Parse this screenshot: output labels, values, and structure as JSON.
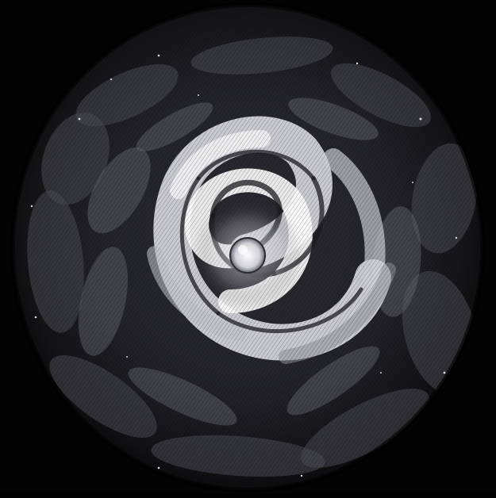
{
  "image": {
    "subject": "engraved-vortex",
    "palette": {
      "background": "#000000",
      "disc_dark": "#141417",
      "disc_mid": "#3a3a42",
      "swirl_light": "#e8e8ee",
      "highlight": "#ffffff"
    }
  },
  "caption": {
    "text": ""
  }
}
